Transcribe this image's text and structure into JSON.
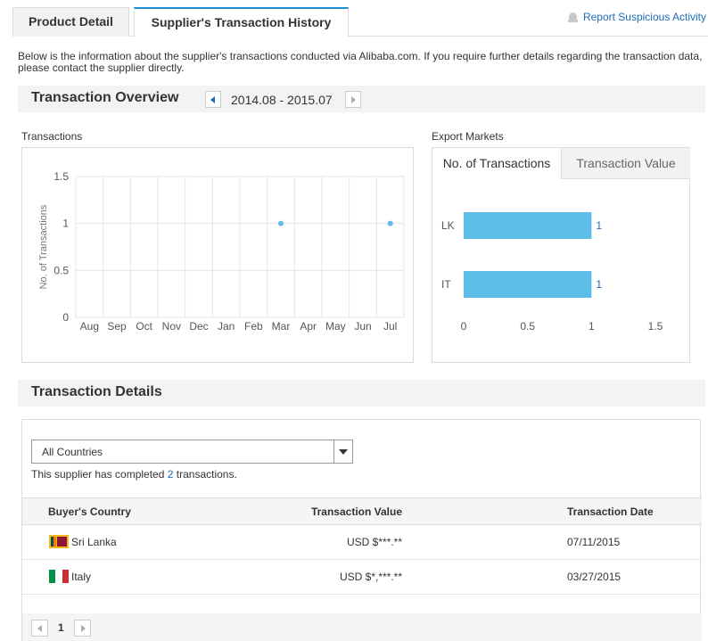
{
  "tabs": {
    "product_detail": "Product Detail",
    "transaction_history": "Supplier's Transaction History"
  },
  "report_link": "Report Suspicious Activity",
  "intro": "Below is the information about the supplier's transactions conducted via Alibaba.com. If you require further details regarding the transaction data, please contact the supplier directly.",
  "overview": {
    "title": "Transaction Overview",
    "period": "2014.08 - 2015.07"
  },
  "transactions_label": "Transactions",
  "export_markets_label": "Export Markets",
  "export_tabs": {
    "count": "No. of Transactions",
    "value": "Transaction Value"
  },
  "chart_data": [
    {
      "type": "scatter",
      "title": "Transactions",
      "xlabel": "",
      "ylabel": "No. of Transactions",
      "categories": [
        "Aug",
        "Sep",
        "Oct",
        "Nov",
        "Dec",
        "Jan",
        "Feb",
        "Mar",
        "Apr",
        "May",
        "Jun",
        "Jul"
      ],
      "series": [
        {
          "values": [
            null,
            null,
            null,
            null,
            null,
            null,
            null,
            1,
            null,
            null,
            null,
            1
          ]
        }
      ],
      "ylim": [
        0,
        1.5
      ],
      "yticks": [
        0,
        0.5,
        1,
        1.5
      ],
      "ytick_labels": [
        "0",
        "0.5",
        "1",
        "1.5"
      ],
      "grid": true,
      "color": "#5bbde8"
    },
    {
      "type": "bar",
      "orientation": "horizontal",
      "title": "Export Markets",
      "categories": [
        "LK",
        "IT"
      ],
      "values": [
        1,
        1
      ],
      "value_labels": [
        "1",
        "1"
      ],
      "xlim": [
        0,
        1.5
      ],
      "xticks": [
        0,
        0.5,
        1,
        1.5
      ],
      "xtick_labels": [
        "0",
        "0.5",
        "1",
        "1.5"
      ],
      "grid": false,
      "color": "#5bbde8"
    }
  ],
  "details": {
    "title": "Transaction Details",
    "country_select": "All Countries",
    "completed_prefix": "This supplier has completed ",
    "completed_count": "2",
    "completed_suffix": " transactions.",
    "columns": {
      "country": "Buyer's Country",
      "value": "Transaction Value",
      "date": "Transaction Date"
    },
    "rows": [
      {
        "country": "Sri Lanka",
        "value": "USD $***.**",
        "date": "07/11/2015",
        "flag": "flag-sri-lanka-icon"
      },
      {
        "country": "Italy",
        "value": "USD $*,***.**",
        "date": "03/27/2015",
        "flag": "flag-italy-icon"
      }
    ],
    "page": "1"
  }
}
